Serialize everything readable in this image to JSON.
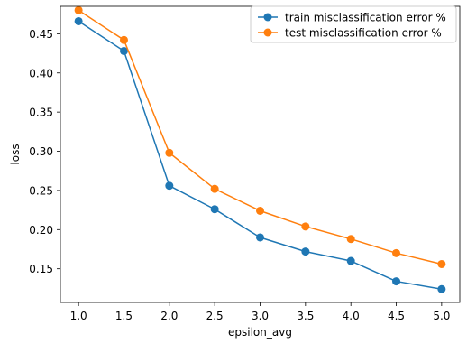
{
  "chart_data": {
    "type": "line",
    "title": "",
    "xlabel": "epsilon_avg",
    "ylabel": "loss",
    "x": [
      1.0,
      1.5,
      2.0,
      2.5,
      3.0,
      3.5,
      4.0,
      4.5,
      5.0
    ],
    "x_ticks": [
      "1.0",
      "1.5",
      "2.0",
      "2.5",
      "3.0",
      "3.5",
      "4.0",
      "4.5",
      "5.0"
    ],
    "y_ticks": [
      "0.15",
      "0.20",
      "0.25",
      "0.30",
      "0.35",
      "0.40",
      "0.45"
    ],
    "y_tick_values": [
      0.15,
      0.2,
      0.25,
      0.3,
      0.35,
      0.4,
      0.45
    ],
    "xlim": [
      0.8,
      5.2
    ],
    "ylim": [
      0.107,
      0.485
    ],
    "grid": false,
    "legend_position": "top-right",
    "series": [
      {
        "name": "train misclassification error %",
        "color": "#1f77b4",
        "marker": "circle",
        "values": [
          0.466,
          0.428,
          0.256,
          0.226,
          0.19,
          0.172,
          0.16,
          0.134,
          0.124
        ]
      },
      {
        "name": "test misclassification error %",
        "color": "#ff7f0e",
        "marker": "circle",
        "values": [
          0.48,
          0.442,
          0.298,
          0.252,
          0.224,
          0.204,
          0.188,
          0.17,
          0.156
        ]
      }
    ]
  }
}
